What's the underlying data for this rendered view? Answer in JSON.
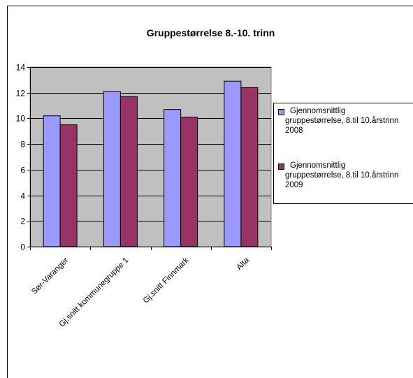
{
  "chart_data": {
    "type": "bar",
    "title": "Gruppestørrelse 8.-10. trinn",
    "categories": [
      "Sør-Varanger",
      "Gj.snitt kommunegruppe 1",
      "Gj.snitt Finnmark",
      "Alta"
    ],
    "series": [
      {
        "name": "Gjennomsnittlig gruppestørrelse, 8.til 10.årstrinn 2008",
        "values": [
          10.2,
          12.1,
          10.7,
          12.9
        ],
        "color": "#9999ff"
      },
      {
        "name": "Gjennomsnittlig gruppestørrelse, 8.til 10.årstrinn 2009",
        "values": [
          9.5,
          11.7,
          10.1,
          12.4
        ],
        "color": "#993366"
      }
    ],
    "ylim": [
      0,
      14
    ],
    "yticks": [
      0,
      2,
      4,
      6,
      8,
      10,
      12,
      14
    ],
    "grid": true,
    "plot_background": "#c0c0c0",
    "legend_position": "right"
  },
  "legend": {
    "entries": [
      {
        "lines": [
          "Gjennomsnittlig",
          "gruppestørrelse, 8.til 10.årstrinn",
          "2008"
        ],
        "color": "#9999ff"
      },
      {
        "lines": [
          "Gjennomsnittlig",
          "gruppestørrelse, 8.til 10.årstrinn",
          "2009"
        ],
        "color": "#993366"
      }
    ]
  }
}
